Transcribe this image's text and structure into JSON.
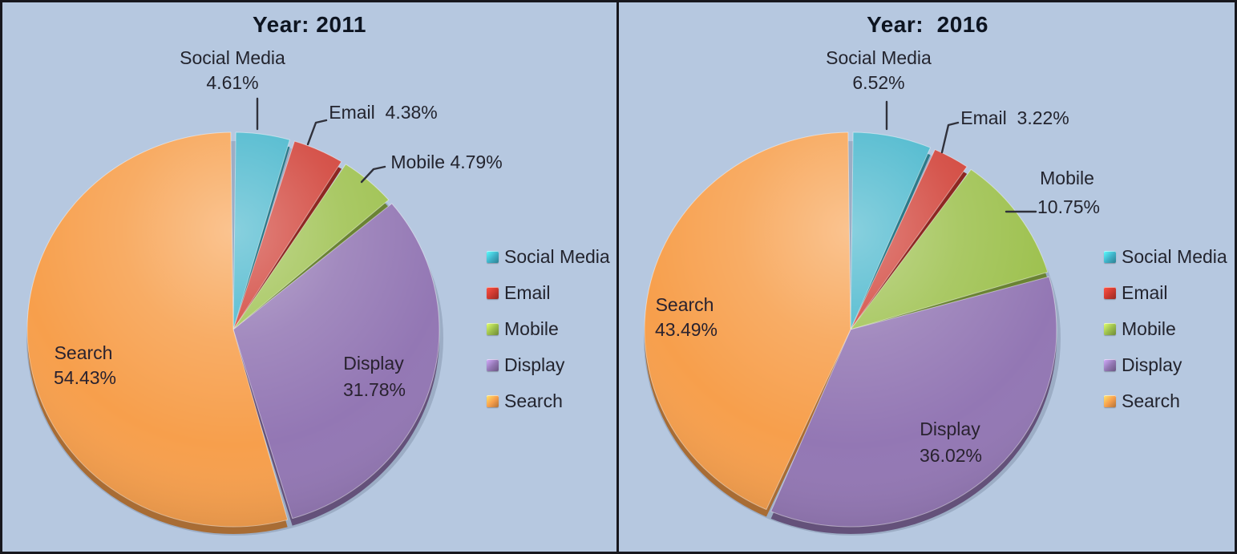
{
  "page": {
    "background": "#b6c8e0",
    "border_color": "#17171d"
  },
  "chart_data": [
    {
      "type": "pie",
      "title": "Year: 2011",
      "labels": [
        "Social Media",
        "Email",
        "Mobile",
        "Display",
        "Search"
      ],
      "values": [
        4.61,
        4.38,
        4.79,
        31.78,
        54.43
      ],
      "units": "%",
      "colors": [
        "#3fb3ca",
        "#cf3a30",
        "#9cc04c",
        "#9377b4",
        "#f79f4c"
      ],
      "legend": [
        "Social Media",
        "Email",
        "Mobile",
        "Display",
        "Search"
      ],
      "legend_position": "right",
      "start_angle_deg": 0,
      "direction": "clockwise"
    },
    {
      "type": "pie",
      "title": "Year:  2016",
      "labels": [
        "Social Media",
        "Email",
        "Mobile",
        "Display",
        "Search"
      ],
      "values": [
        6.52,
        3.22,
        10.75,
        36.02,
        43.49
      ],
      "units": "%",
      "colors": [
        "#3fb3ca",
        "#cf3a30",
        "#9cc04c",
        "#9377b4",
        "#f79f4c"
      ],
      "legend": [
        "Social Media",
        "Email",
        "Mobile",
        "Display",
        "Search"
      ],
      "legend_position": "right",
      "start_angle_deg": 0,
      "direction": "clockwise"
    }
  ],
  "callouts": {
    "c2011": {
      "social_line1": "Social Media",
      "social_line2": "4.61%",
      "email": "Email  4.38%",
      "mobile": "Mobile 4.79%",
      "display_line1": "Display",
      "display_line2": "31.78%",
      "search_line1": "Search",
      "search_line2": "54.43%"
    },
    "c2016": {
      "social_line1": "Social Media",
      "social_line2": "6.52%",
      "email": "Email  3.22%",
      "mobile_line1": "Mobile",
      "mobile_line2": "10.75%",
      "display_line1": "Display",
      "display_line2": "36.02%",
      "search_line1": "Search",
      "search_line2": "43.49%"
    }
  }
}
